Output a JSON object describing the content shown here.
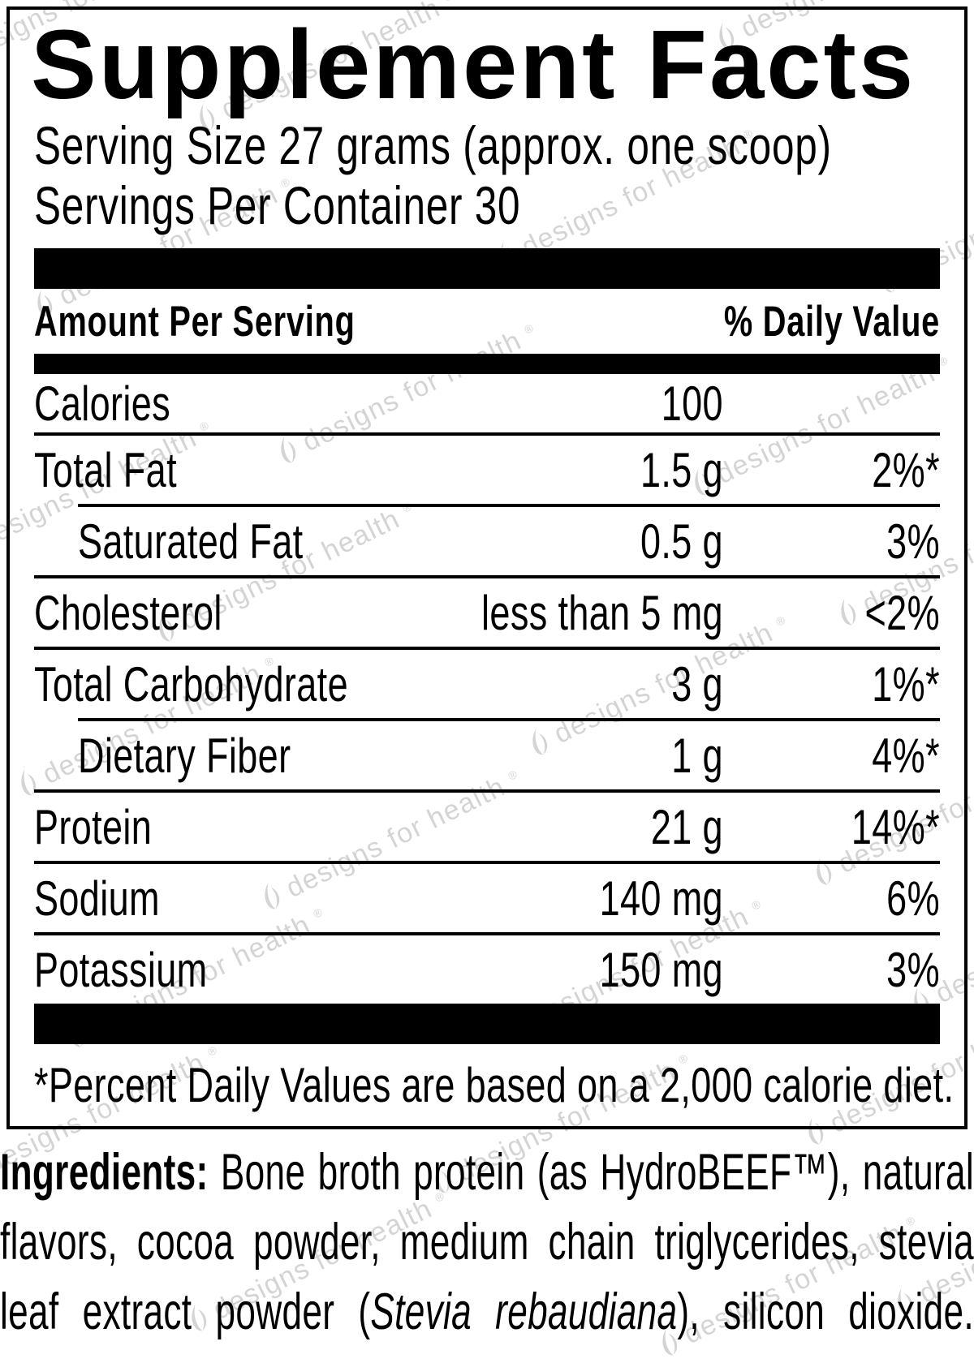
{
  "label": {
    "title": "Supplement Facts",
    "serving_size": "Serving Size 27 grams (approx. one scoop)",
    "servings_per_container": "Servings Per Container 30",
    "header": {
      "amount": "Amount Per Serving",
      "daily_value": "% Daily Value"
    },
    "rows": [
      {
        "name": "Calories",
        "amount": "100",
        "dv": "",
        "indent": false,
        "sep": "none"
      },
      {
        "name": "Total Fat",
        "amount": "1.5 g",
        "dv": "2%*",
        "indent": false,
        "sep": "full"
      },
      {
        "name": "Saturated Fat",
        "amount": "0.5 g",
        "dv": "3%",
        "indent": true,
        "sep": "indent"
      },
      {
        "name": "Cholesterol",
        "amount": "less than 5 mg",
        "dv": "<2%",
        "indent": false,
        "sep": "full"
      },
      {
        "name": "Total Carbohydrate",
        "amount": "3 g",
        "dv": "1%*",
        "indent": false,
        "sep": "full"
      },
      {
        "name": "Dietary Fiber",
        "amount": "1 g",
        "dv": "4%*",
        "indent": true,
        "sep": "indent"
      },
      {
        "name": "Protein",
        "amount": "21 g",
        "dv": "14%*",
        "indent": false,
        "sep": "full"
      },
      {
        "name": "Sodium",
        "amount": "140 mg",
        "dv": "6%",
        "indent": false,
        "sep": "full"
      },
      {
        "name": "Potassium",
        "amount": "150 mg",
        "dv": "3%",
        "indent": false,
        "sep": "full"
      }
    ],
    "footnote": "*Percent Daily Values are based on a 2,000 calorie diet."
  },
  "ingredients": {
    "label": "Ingredients:",
    "line1_rest": " Bone broth protein (as HydroBEEF™), natural",
    "line2": "flavors, cocoa powder, medium chain triglycerides, stevia",
    "line3_pre": "leaf extract powder (",
    "line3_italic": "Stevia rebaudiana",
    "line3_post": "), silicon dioxide."
  },
  "watermark": {
    "text": "designs for health",
    "reg": "®",
    "color": "#d4d4d4"
  },
  "colors": {
    "ink": "#000000",
    "paper": "#ffffff",
    "watermark": "#d4d4d4"
  }
}
